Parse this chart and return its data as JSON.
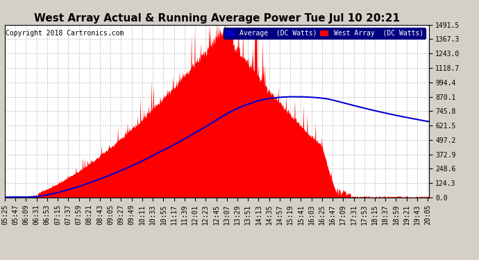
{
  "title": "West Array Actual & Running Average Power Tue Jul 10 20:21",
  "copyright": "Copyright 2018 Cartronics.com",
  "ylabel_right_ticks": [
    0.0,
    124.3,
    248.6,
    372.9,
    497.2,
    621.5,
    745.8,
    870.1,
    994.4,
    1118.7,
    1243.0,
    1367.3,
    1491.5
  ],
  "ymax": 1491.5,
  "legend_labels": [
    "Average  (DC Watts)",
    "West Array  (DC Watts)"
  ],
  "legend_colors": [
    "#0000cc",
    "#ff0000"
  ],
  "bg_color": "#d4d0c8",
  "plot_bg_color": "#ffffff",
  "grid_color": "#aaaaaa",
  "fill_color": "#ff0000",
  "avg_line_color": "#0000cc",
  "title_color": "#000000",
  "title_fontsize": 11,
  "tick_fontsize": 7,
  "copyright_fontsize": 7
}
